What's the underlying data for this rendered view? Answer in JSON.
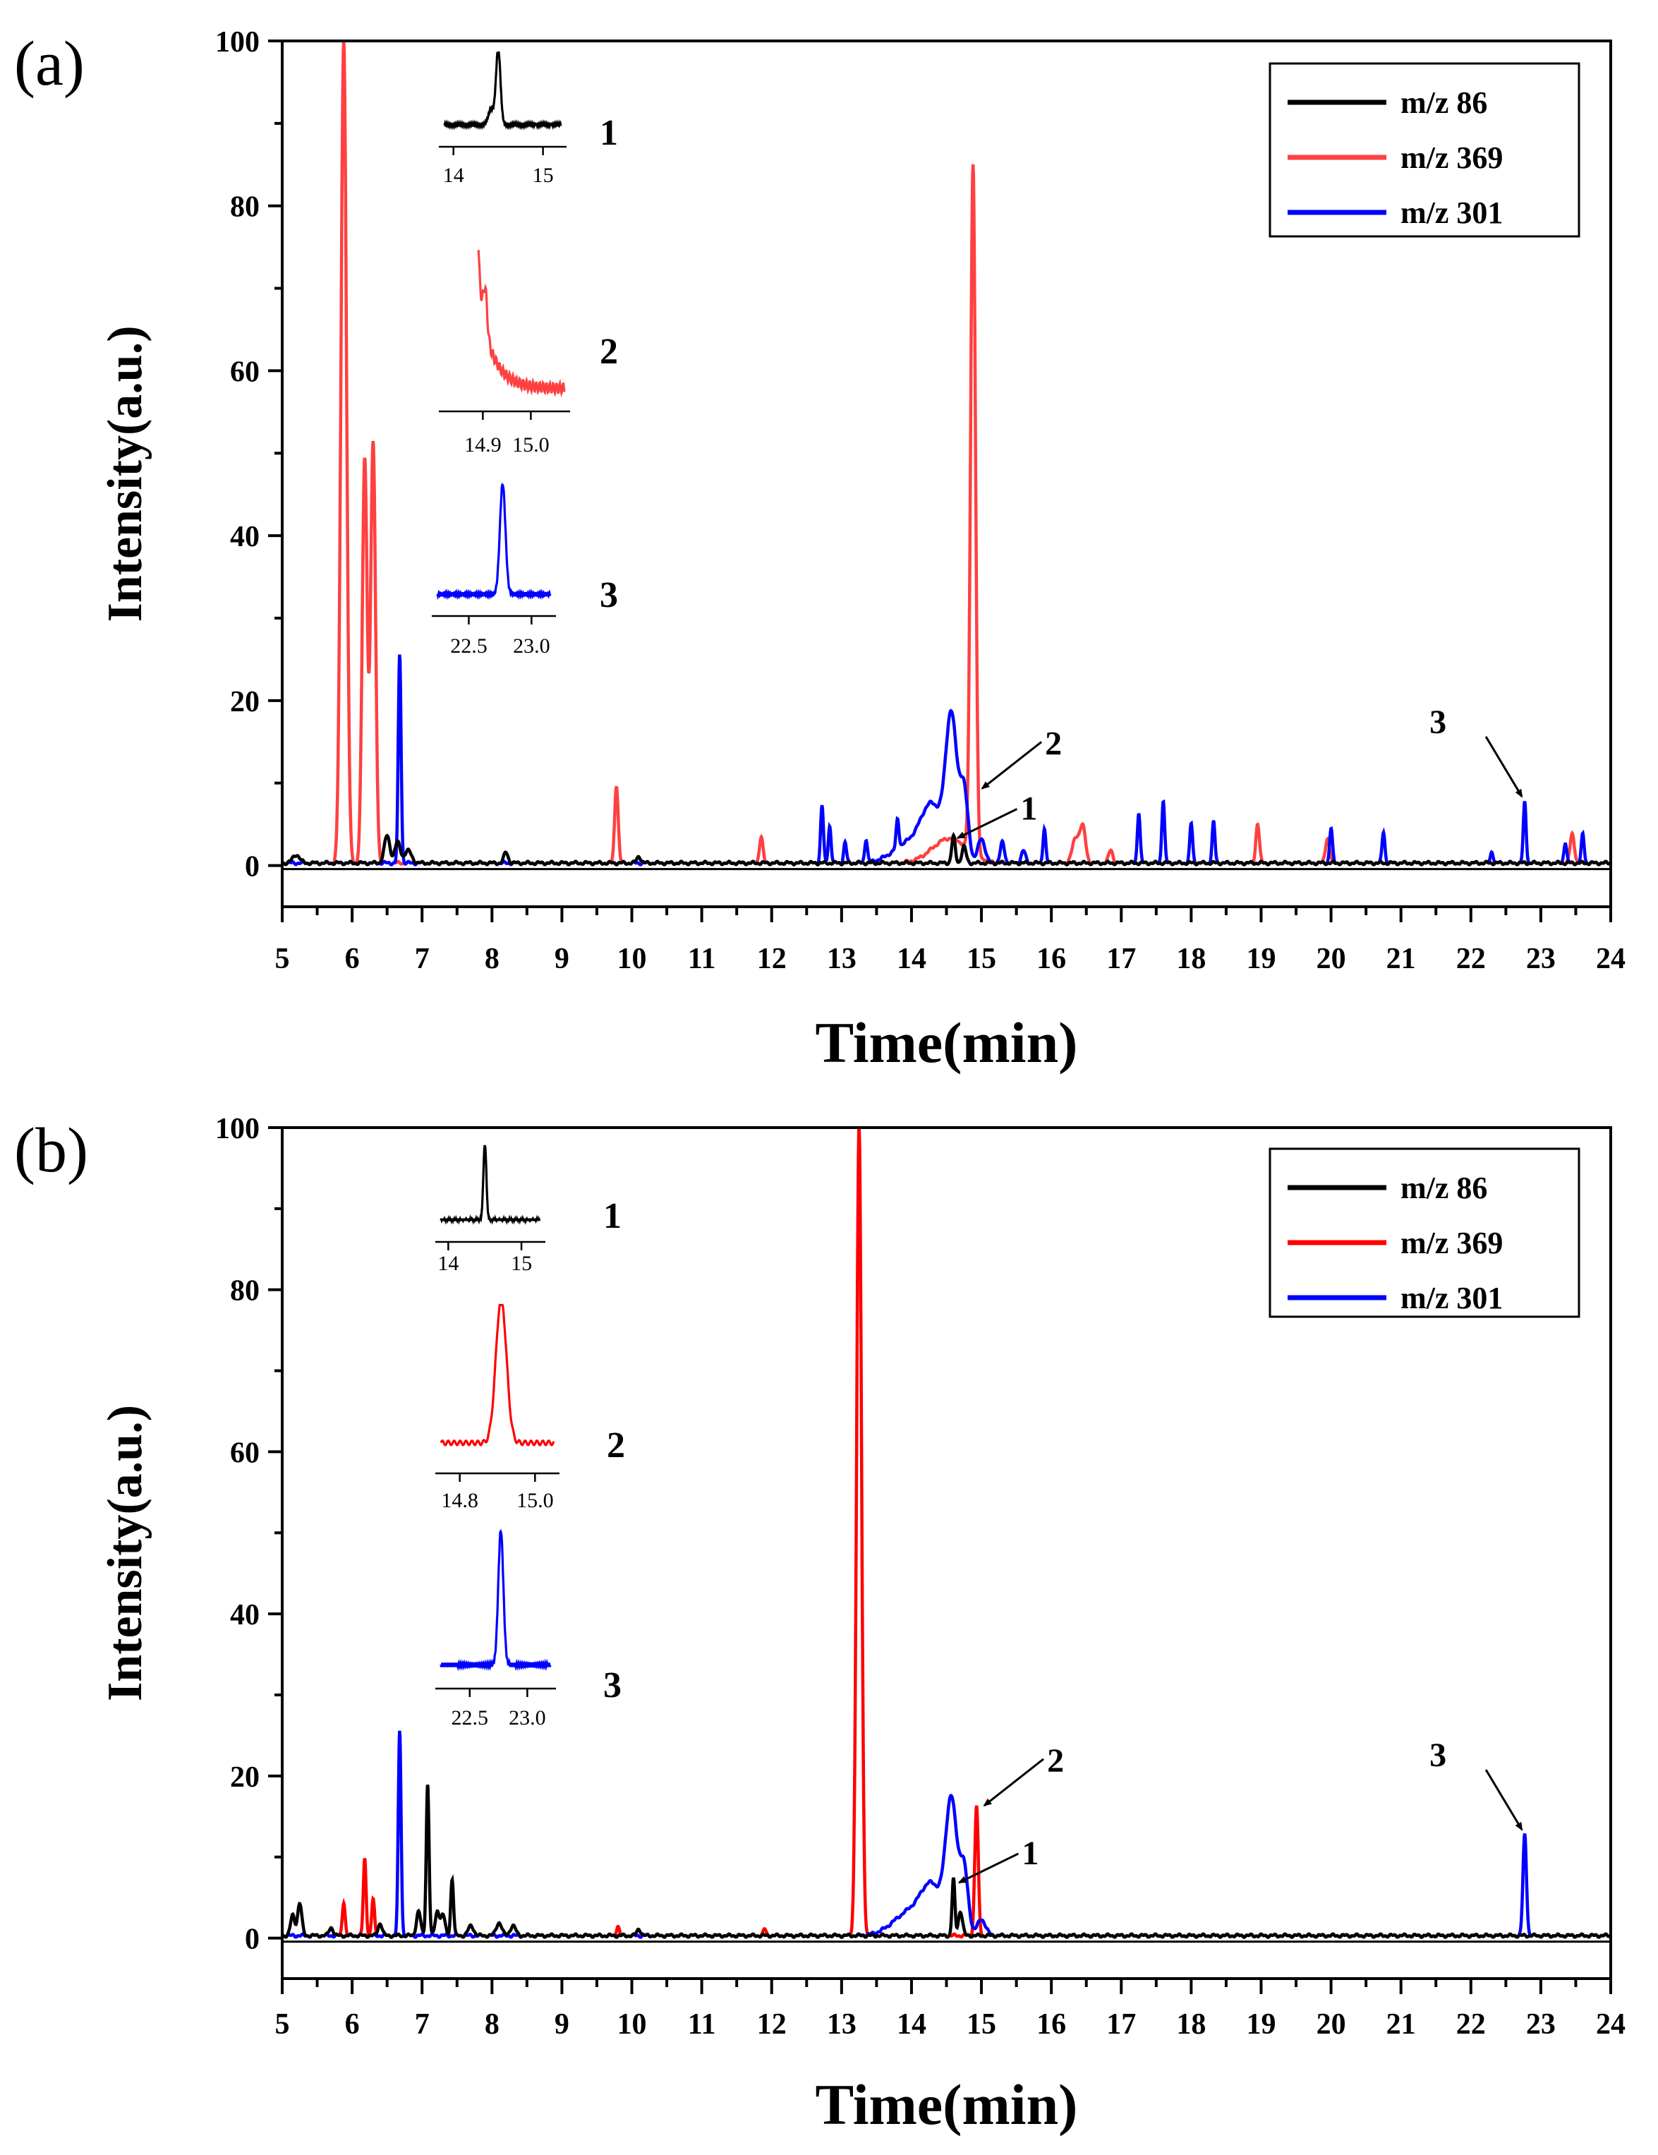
{
  "chart_data": [
    {
      "type": "line",
      "panel_label": "(a)",
      "xlabel": "Time(min)",
      "ylabel": "Intensity(a.u.)",
      "xlim": [
        5,
        24
      ],
      "ylim": [
        -5,
        100
      ],
      "x_ticks": [
        "5",
        "6",
        "7",
        "8",
        "9",
        "10",
        "11",
        "12",
        "13",
        "14",
        "15",
        "16",
        "17",
        "18",
        "19",
        "20",
        "21",
        "22",
        "23",
        "24"
      ],
      "y_ticks": [
        "0",
        "20",
        "40",
        "60",
        "80",
        "100"
      ],
      "legend": {
        "position": "top-right",
        "entries": [
          "m/z 86",
          "m/z 369",
          "m/z 301"
        ]
      },
      "series": [
        {
          "name": "m/z 86",
          "color": "#000000",
          "peaks": [
            [
              5.2,
              1,
              0.05
            ],
            [
              6.5,
              3.3,
              0.04
            ],
            [
              6.65,
              2.5,
              0.04
            ],
            [
              6.8,
              1.5,
              0.05
            ],
            [
              8.2,
              1.3,
              0.03
            ],
            [
              10.1,
              0.8,
              0.03
            ],
            [
              14.6,
              3.2,
              0.025
            ],
            [
              14.75,
              2,
              0.03
            ]
          ]
        },
        {
          "name": "m/z 369",
          "color": "#ff4040",
          "peaks": [
            [
              5.88,
              100,
              0.04
            ],
            [
              6.18,
              49,
              0.035
            ],
            [
              6.3,
              51,
              0.035
            ],
            [
              9.78,
              9.5,
              0.025
            ],
            [
              11.85,
              3.2,
              0.025
            ],
            [
              14.55,
              3,
              0.25
            ],
            [
              14.88,
              83.5,
              0.035
            ],
            [
              16.35,
              3,
              0.05
            ],
            [
              16.45,
              4.2,
              0.04
            ],
            [
              16.85,
              1.6,
              0.03
            ],
            [
              18.95,
              4.8,
              0.025
            ],
            [
              19.95,
              3,
              0.03
            ],
            [
              23.45,
              3.5,
              0.03
            ]
          ]
        },
        {
          "name": "m/z 301",
          "color": "#0000ff",
          "peaks": [
            [
              6.68,
              25.3,
              0.02
            ],
            [
              12.72,
              7,
              0.02
            ],
            [
              12.83,
              4.5,
              0.02
            ],
            [
              13.05,
              2.5,
              0.02
            ],
            [
              13.35,
              2.8,
              0.02
            ],
            [
              13.8,
              3.5,
              0.02
            ],
            [
              14.0,
              2.5,
              0.25
            ],
            [
              14.3,
              6,
              0.15
            ],
            [
              14.57,
              17,
              0.08
            ],
            [
              14.75,
              8.5,
              0.06
            ],
            [
              15.0,
              3,
              0.05
            ],
            [
              15.3,
              2.5,
              0.03
            ],
            [
              15.6,
              1.5,
              0.03
            ],
            [
              15.9,
              4.2,
              0.02
            ],
            [
              17.25,
              6.2,
              0.02
            ],
            [
              17.6,
              7.6,
              0.02
            ],
            [
              18.0,
              4.8,
              0.02
            ],
            [
              18.32,
              5,
              0.02
            ],
            [
              20.0,
              4.2,
              0.02
            ],
            [
              20.75,
              3.8,
              0.02
            ],
            [
              22.3,
              1.4,
              0.02
            ],
            [
              22.77,
              7.4,
              0.02
            ],
            [
              23.35,
              2.5,
              0.02
            ],
            [
              23.6,
              3.5,
              0.02
            ]
          ]
        }
      ],
      "annotations": [
        {
          "label": "1",
          "x": 14.6,
          "y": 3
        },
        {
          "label": "2",
          "x": 14.95,
          "y": 9
        },
        {
          "label": "3",
          "x": 22.77,
          "y": 7.5
        }
      ],
      "insets": [
        {
          "label": "1",
          "color": "#000000",
          "xlim": [
            13.9,
            15.2
          ],
          "ticks": [
            "14",
            "15"
          ],
          "base": 0.12,
          "peaks": [
            [
              14.5,
              0.98,
              0.025
            ],
            [
              14.42,
              0.2,
              0.03
            ]
          ]
        },
        {
          "label": "2",
          "color": "#ff4040",
          "xlim": [
            14.82,
            15.07
          ],
          "ticks": [
            "14.9",
            "15.0"
          ],
          "decay": true
        },
        {
          "label": "3",
          "color": "#0000ff",
          "xlim": [
            22.25,
            23.15
          ],
          "ticks": [
            "22.5",
            "23.0"
          ],
          "base": 0.08,
          "peaks": [
            [
              22.77,
              0.98,
              0.022
            ]
          ]
        }
      ]
    },
    {
      "type": "line",
      "panel_label": "(b)",
      "xlabel": "Time(min)",
      "ylabel": "Intensity(a.u.)",
      "xlim": [
        5,
        24
      ],
      "ylim": [
        -5,
        100
      ],
      "x_ticks": [
        "5",
        "6",
        "7",
        "8",
        "9",
        "10",
        "11",
        "12",
        "13",
        "14",
        "15",
        "16",
        "17",
        "18",
        "19",
        "20",
        "21",
        "22",
        "23",
        "24"
      ],
      "y_ticks": [
        "0",
        "20",
        "40",
        "60",
        "80",
        "100"
      ],
      "legend": {
        "position": "top-right",
        "entries": [
          "m/z 86",
          "m/z 369",
          "m/z 301"
        ]
      },
      "series": [
        {
          "name": "m/z 86",
          "color": "#000000",
          "peaks": [
            [
              5.15,
              2.5,
              0.03
            ],
            [
              5.25,
              4,
              0.03
            ],
            [
              5.7,
              1,
              0.03
            ],
            [
              6.4,
              1.5,
              0.03
            ],
            [
              6.95,
              3,
              0.03
            ],
            [
              7.08,
              18.8,
              0.02
            ],
            [
              7.22,
              3,
              0.03
            ],
            [
              7.3,
              2.5,
              0.03
            ],
            [
              7.43,
              7,
              0.02
            ],
            [
              7.7,
              1.2,
              0.04
            ],
            [
              8.1,
              1.6,
              0.04
            ],
            [
              8.3,
              1.2,
              0.04
            ],
            [
              10.1,
              0.8,
              0.03
            ],
            [
              14.6,
              7,
              0.02
            ],
            [
              14.7,
              3,
              0.03
            ]
          ]
        },
        {
          "name": "m/z 369",
          "color": "#ff0000",
          "peaks": [
            [
              5.88,
              4.2,
              0.02
            ],
            [
              6.18,
              9.5,
              0.02
            ],
            [
              6.3,
              4.5,
              0.02
            ],
            [
              9.8,
              1.2,
              0.02
            ],
            [
              11.9,
              0.8,
              0.02
            ],
            [
              13.25,
              100,
              0.035
            ],
            [
              14.93,
              16,
              0.025
            ]
          ]
        },
        {
          "name": "m/z 301",
          "color": "#0000ff",
          "peaks": [
            [
              6.68,
              25.3,
              0.02
            ],
            [
              14.0,
              3,
              0.25
            ],
            [
              14.3,
              5,
              0.15
            ],
            [
              14.57,
              16,
              0.08
            ],
            [
              14.75,
              8,
              0.06
            ],
            [
              15.0,
              2,
              0.06
            ],
            [
              22.77,
              12.5,
              0.025
            ]
          ]
        }
      ],
      "annotations": [
        {
          "label": "1",
          "x": 14.62,
          "y": 6.5
        },
        {
          "label": "2",
          "x": 14.98,
          "y": 16
        },
        {
          "label": "3",
          "x": 22.77,
          "y": 12.5
        }
      ],
      "insets": [
        {
          "label": "1",
          "color": "#000000",
          "xlim": [
            13.9,
            15.25
          ],
          "ticks": [
            "14",
            "15"
          ],
          "base": 0.12,
          "peaks": [
            [
              14.5,
              0.98,
              0.02
            ]
          ]
        },
        {
          "label": "2",
          "color": "#ff0000",
          "xlim": [
            14.75,
            15.05
          ],
          "ticks": [
            "14.8",
            "15.0"
          ],
          "base": 0.12,
          "peaks": [
            [
              14.91,
              0.98,
              0.014
            ]
          ]
        },
        {
          "label": "3",
          "color": "#0000ff",
          "xlim": [
            22.25,
            23.2
          ],
          "ticks": [
            "22.5",
            "23.0"
          ],
          "base": 0.08,
          "peaks": [
            [
              22.77,
              0.98,
              0.022
            ]
          ]
        }
      ]
    }
  ]
}
